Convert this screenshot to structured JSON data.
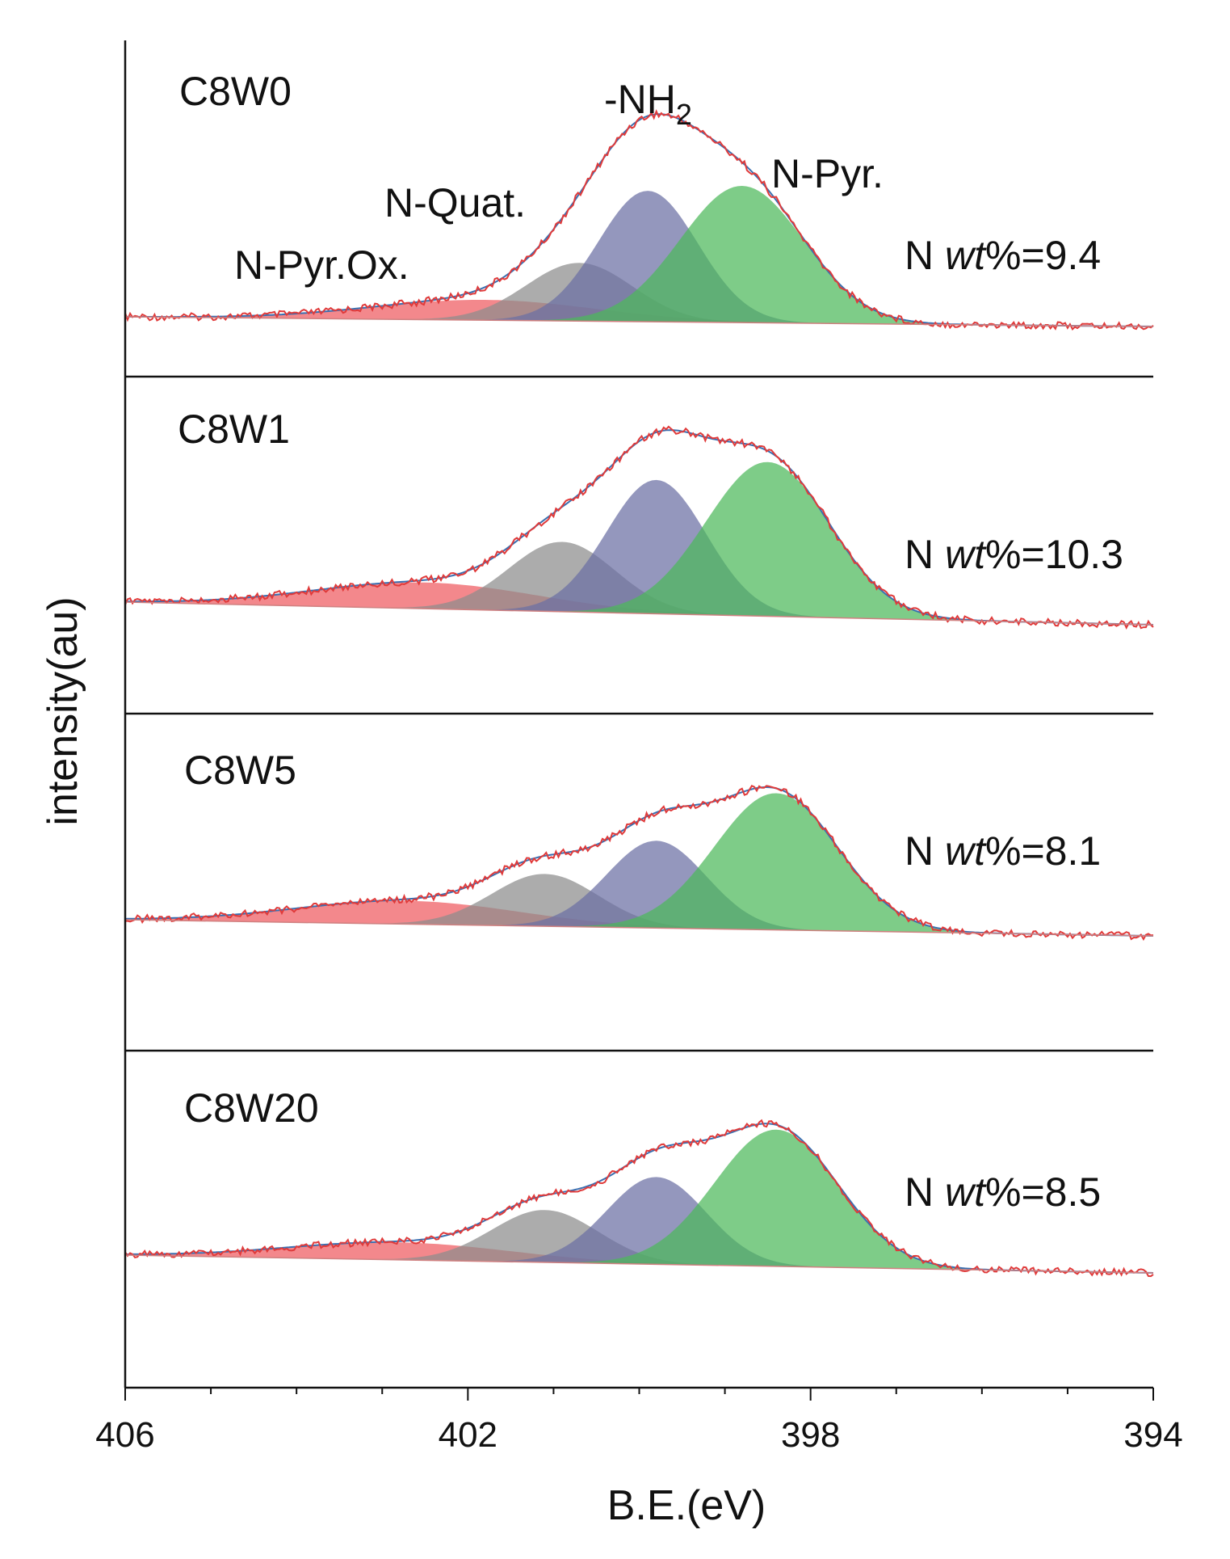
{
  "chart_data": {
    "type": "stacked-spectra",
    "title": "",
    "xlabel": "B.E.(eV)",
    "ylabel": "intensity(au)",
    "xlim": [
      406,
      394
    ],
    "xticks": [
      "406",
      "402",
      "398",
      "394"
    ],
    "components": [
      {
        "name": "N-Pyr.Ox.",
        "color": "#ee5a5f"
      },
      {
        "name": "N-Quat.",
        "color": "#8c8c8c"
      },
      {
        "name": "-NH",
        "subscript": "2",
        "color": "#6b6fa3"
      },
      {
        "name": "N-Pyr.",
        "color": "#4cb85a"
      }
    ],
    "panels": [
      {
        "sample": "C8W0",
        "wt_prefix": "N ",
        "wt_italic": "wt",
        "wt_suffix": "%=9.4",
        "peaks": [
          {
            "component": "N-Pyr.Ox.",
            "center": 401.8,
            "height": 0.07,
            "sigma": 1.3
          },
          {
            "component": "N-Quat.",
            "center": 400.7,
            "height": 0.2,
            "sigma": 0.62
          },
          {
            "component": "-NH2",
            "center": 399.9,
            "height": 0.45,
            "sigma": 0.58
          },
          {
            "component": "N-Pyr.",
            "center": 398.8,
            "height": 0.47,
            "sigma": 0.72
          }
        ]
      },
      {
        "sample": "C8W1",
        "wt_prefix": "N ",
        "wt_italic": "wt",
        "wt_suffix": "%=10.3",
        "peaks": [
          {
            "component": "N-Pyr.Ox.",
            "center": 402.5,
            "height": 0.09,
            "sigma": 1.3
          },
          {
            "component": "N-Quat.",
            "center": 400.9,
            "height": 0.24,
            "sigma": 0.62
          },
          {
            "component": "-NH2",
            "center": 399.8,
            "height": 0.46,
            "sigma": 0.58
          },
          {
            "component": "N-Pyr.",
            "center": 398.5,
            "height": 0.53,
            "sigma": 0.72
          }
        ]
      },
      {
        "sample": "C8W5",
        "wt_prefix": "N ",
        "wt_italic": "wt",
        "wt_suffix": "%=8.1",
        "peaks": [
          {
            "component": "N-Pyr.Ox.",
            "center": 402.7,
            "height": 0.08,
            "sigma": 1.3
          },
          {
            "component": "N-Quat.",
            "center": 401.1,
            "height": 0.18,
            "sigma": 0.62
          },
          {
            "component": "-NH2",
            "center": 399.8,
            "height": 0.3,
            "sigma": 0.58
          },
          {
            "component": "N-Pyr.",
            "center": 398.4,
            "height": 0.47,
            "sigma": 0.72
          }
        ]
      },
      {
        "sample": "C8W20",
        "wt_prefix": "N ",
        "wt_italic": "wt",
        "wt_suffix": "%=8.5",
        "peaks": [
          {
            "component": "N-Pyr.Ox.",
            "center": 402.8,
            "height": 0.06,
            "sigma": 1.3
          },
          {
            "component": "N-Quat.",
            "center": 401.1,
            "height": 0.18,
            "sigma": 0.62
          },
          {
            "component": "-NH2",
            "center": 399.8,
            "height": 0.3,
            "sigma": 0.58
          },
          {
            "component": "N-Pyr.",
            "center": 398.4,
            "height": 0.47,
            "sigma": 0.72
          }
        ]
      }
    ],
    "peak_labels": [
      {
        "component": "N-Pyr.Ox.",
        "text": "N-Pyr.Ox."
      },
      {
        "component": "N-Quat.",
        "text": "N-Quat."
      },
      {
        "component": "-NH2",
        "text": "-NH",
        "subscript": "2"
      },
      {
        "component": "N-Pyr.",
        "text": "N-Pyr."
      }
    ]
  }
}
